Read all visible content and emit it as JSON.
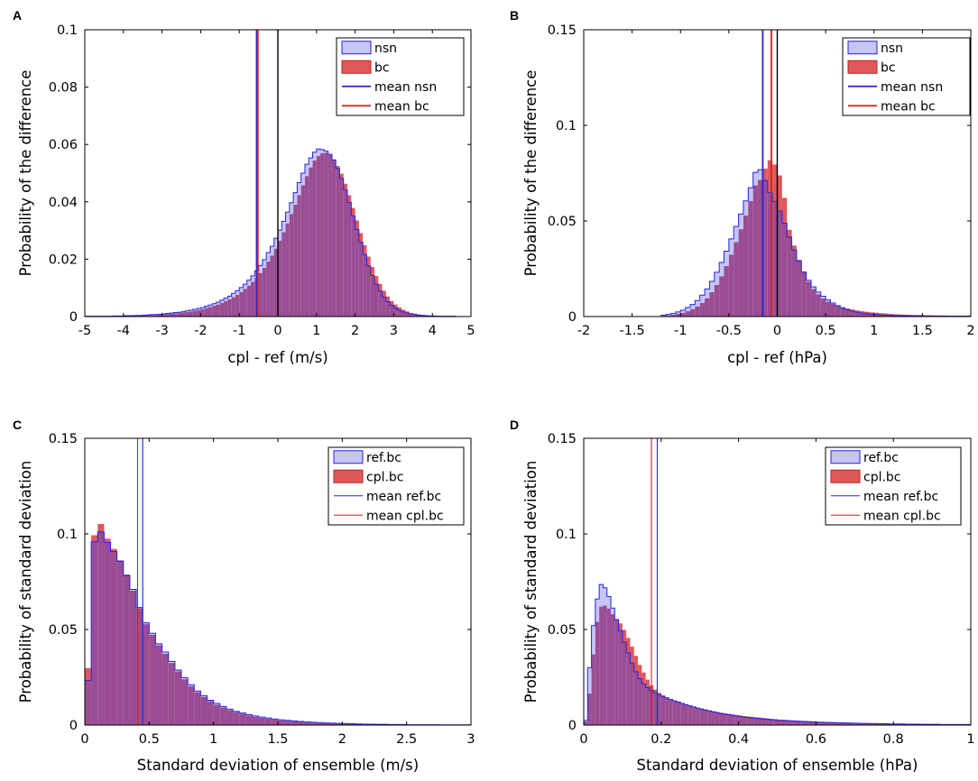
{
  "colors": {
    "nsn_fill": "#c6c6f5",
    "nsn_edge": "#2323e8",
    "bc_fill": "#e0585a",
    "bc_edge": "#c02020",
    "overlap": "#9a4d92",
    "mean_blue": "#2424d8",
    "mean_red": "#d42020",
    "zero_line": "#000000"
  },
  "chart_data": [
    {
      "type": "bar",
      "panel": "A",
      "xlabel": "cpl - ref (m/s)",
      "ylabel": "Probability of the difference",
      "xlim": [
        -5,
        5
      ],
      "ylim": [
        0,
        0.1
      ],
      "xticks": [
        -5,
        -4,
        -3,
        -2,
        -1,
        0,
        1,
        2,
        3,
        4,
        5
      ],
      "xtick_labels": [
        "-5",
        "-4",
        "-3",
        "-2",
        "-1",
        "0",
        "1",
        "2",
        "3",
        "4",
        "5"
      ],
      "yticks": [
        0,
        0.02,
        0.04,
        0.06,
        0.08,
        0.1
      ],
      "ytick_labels": [
        "0",
        "0.02",
        "0.04",
        "0.06",
        "0.08",
        "0.1"
      ],
      "legend": [
        "nsn",
        "bc",
        "mean nsn",
        "mean bc"
      ],
      "legend_position": "top-right",
      "bins": {
        "start": -5,
        "width": 0.1,
        "count": 100
      },
      "series": [
        {
          "name": "nsn",
          "kind": "hist",
          "values": [
            0.0001,
            0.0001,
            0.0001,
            0.0001,
            0.0001,
            0.0001,
            0.0001,
            0.0002,
            0.0002,
            0.0002,
            0.0003,
            0.0003,
            0.0003,
            0.0004,
            0.0004,
            0.0005,
            0.0006,
            0.0007,
            0.0007,
            0.0008,
            0.0009,
            0.0011,
            0.0012,
            0.0014,
            0.0015,
            0.0017,
            0.002,
            0.0022,
            0.0025,
            0.0028,
            0.0031,
            0.0036,
            0.004,
            0.0045,
            0.005,
            0.0057,
            0.0064,
            0.0071,
            0.0081,
            0.009,
            0.0101,
            0.0113,
            0.0127,
            0.0142,
            0.0159,
            0.0178,
            0.0198,
            0.0223,
            0.0245,
            0.0273,
            0.0301,
            0.0332,
            0.0364,
            0.0397,
            0.0432,
            0.0467,
            0.05,
            0.0531,
            0.0553,
            0.0573,
            0.0584,
            0.0582,
            0.0577,
            0.0566,
            0.0546,
            0.0516,
            0.0481,
            0.0441,
            0.0398,
            0.0351,
            0.0304,
            0.0259,
            0.0216,
            0.0177,
            0.0143,
            0.0113,
            0.0089,
            0.0068,
            0.0052,
            0.0039,
            0.003,
            0.0022,
            0.0016,
            0.0012,
            0.0009,
            0.0007,
            0.0005,
            0.0004,
            0.0003,
            0.0002,
            0.0002,
            0.0001,
            0.0001,
            0.0001,
            0.0001,
            0.0001,
            0,
            0,
            0,
            0
          ]
        },
        {
          "name": "bc",
          "kind": "hist",
          "values": [
            0.0001,
            0.0001,
            0.0001,
            0.0001,
            0.0001,
            0.0001,
            0.0001,
            0.0001,
            0.0002,
            0.0002,
            0.0002,
            0.0002,
            0.0003,
            0.0003,
            0.0004,
            0.0004,
            0.0005,
            0.0005,
            0.0006,
            0.0007,
            0.0008,
            0.0009,
            0.001,
            0.0011,
            0.0013,
            0.0014,
            0.0016,
            0.0018,
            0.0021,
            0.0023,
            0.0026,
            0.003,
            0.0033,
            0.0038,
            0.0042,
            0.0048,
            0.0054,
            0.006,
            0.0068,
            0.0076,
            0.0086,
            0.0097,
            0.0108,
            0.0121,
            0.0136,
            0.0152,
            0.017,
            0.0192,
            0.0213,
            0.0237,
            0.0265,
            0.0294,
            0.0325,
            0.0358,
            0.039,
            0.0424,
            0.0458,
            0.049,
            0.052,
            0.0544,
            0.056,
            0.057,
            0.0572,
            0.0564,
            0.0548,
            0.0525,
            0.0498,
            0.0463,
            0.0423,
            0.0379,
            0.0335,
            0.0291,
            0.0249,
            0.0209,
            0.0173,
            0.0141,
            0.0114,
            0.009,
            0.007,
            0.0054,
            0.0042,
            0.0032,
            0.0024,
            0.0018,
            0.0013,
            0.001,
            0.0007,
            0.0005,
            0.0004,
            0.0003,
            0.0002,
            0.0002,
            0.0001,
            0.0001,
            0.0001,
            0.0001,
            0,
            0,
            0,
            0
          ]
        },
        {
          "name": "mean nsn",
          "kind": "vline",
          "x": -0.55
        },
        {
          "name": "mean bc",
          "kind": "vline",
          "x": -0.52
        },
        {
          "name": "zero",
          "kind": "vline",
          "x": 0
        }
      ]
    },
    {
      "type": "bar",
      "panel": "B",
      "xlabel": "cpl - ref (hPa)",
      "ylabel": "Probability of the difference",
      "xlim": [
        -2,
        2
      ],
      "ylim": [
        0,
        0.15
      ],
      "xticks": [
        -2,
        -1.5,
        -1,
        -0.5,
        0,
        0.5,
        1,
        1.5,
        2
      ],
      "xtick_labels": [
        "-2",
        "-1.5",
        "-1",
        "-0.5",
        "0",
        "0.5",
        "1",
        "1.5",
        "2"
      ],
      "yticks": [
        0,
        0.05,
        0.1,
        0.15
      ],
      "ytick_labels": [
        "0",
        "0.05",
        "0.1",
        "0.15"
      ],
      "legend": [
        "nsn",
        "bc",
        "mean nsn",
        "mean bc"
      ],
      "legend_position": "top-right",
      "bins": {
        "start": -2,
        "width": 0.05,
        "count": 80
      },
      "series": [
        {
          "name": "nsn",
          "kind": "hist",
          "values": [
            0,
            0,
            0,
            0,
            0,
            0,
            0,
            0,
            0,
            0,
            0,
            0,
            0,
            0,
            0,
            0,
            0.0007,
            0.0011,
            0.0016,
            0.0024,
            0.0033,
            0.0047,
            0.0063,
            0.0084,
            0.0112,
            0.0144,
            0.0184,
            0.0232,
            0.0283,
            0.0342,
            0.0406,
            0.0471,
            0.0536,
            0.0605,
            0.0674,
            0.0754,
            0.0768,
            0.0711,
            0.0648,
            0.0602,
            0.0552,
            0.0488,
            0.0415,
            0.0348,
            0.029,
            0.0233,
            0.019,
            0.0155,
            0.0128,
            0.0106,
            0.0087,
            0.0071,
            0.0057,
            0.0046,
            0.0036,
            0.0029,
            0.0023,
            0.0018,
            0.0015,
            0.0012,
            0.001,
            0.0008,
            0.0007,
            0.0006,
            0.0005,
            0.0005,
            0.0004,
            0.0004,
            0.0003,
            0.0003,
            0.0003,
            0.0003,
            0.0002,
            0.0002,
            0.0002,
            0.0002,
            0.0002,
            0.0002,
            0.0002,
            0.0002
          ]
        },
        {
          "name": "bc",
          "kind": "hist",
          "values": [
            0,
            0,
            0,
            0,
            0,
            0,
            0,
            0,
            0,
            0,
            0,
            0,
            0,
            0,
            0,
            0,
            0.0004,
            0.0006,
            0.0009,
            0.0014,
            0.002,
            0.0028,
            0.0039,
            0.0053,
            0.0072,
            0.0096,
            0.0128,
            0.0166,
            0.0211,
            0.0264,
            0.0324,
            0.0389,
            0.0457,
            0.0529,
            0.0605,
            0.0686,
            0.0715,
            0.0774,
            0.0818,
            0.0795,
            0.0738,
            0.0621,
            0.0454,
            0.0371,
            0.0297,
            0.0232,
            0.0183,
            0.0145,
            0.0117,
            0.0095,
            0.0079,
            0.0066,
            0.0056,
            0.0048,
            0.0042,
            0.0037,
            0.0032,
            0.0028,
            0.0025,
            0.0022,
            0.002,
            0.0018,
            0.0016,
            0.0014,
            0.0012,
            0.0011,
            0.001,
            0.0009,
            0.0008,
            0.0008,
            0.0007,
            0.0007,
            0.0006,
            0.0006,
            0.0006,
            0.0005,
            0.0005,
            0.0005,
            0.0005,
            0.0005
          ]
        },
        {
          "name": "mean nsn",
          "kind": "vline",
          "x": -0.15
        },
        {
          "name": "mean bc",
          "kind": "vline",
          "x": -0.06
        },
        {
          "name": "zero",
          "kind": "vline",
          "x": 0
        }
      ]
    },
    {
      "type": "bar",
      "panel": "C",
      "xlabel": "Standard deviation of ensemble (m/s)",
      "ylabel": "Probability of standard deviation",
      "xlim": [
        0,
        3
      ],
      "ylim": [
        0,
        0.15
      ],
      "xticks": [
        0,
        0.5,
        1,
        1.5,
        2,
        2.5,
        3
      ],
      "xtick_labels": [
        "0",
        "0.5",
        "1",
        "1.5",
        "2",
        "2.5",
        "3"
      ],
      "yticks": [
        0,
        0.05,
        0.1,
        0.15
      ],
      "ytick_labels": [
        "0",
        "0.05",
        "0.1",
        "0.15"
      ],
      "legend": [
        "ref.bc",
        "cpl.bc",
        "mean ref.bc",
        "mean cpl.bc"
      ],
      "legend_position": "top-right",
      "bins": {
        "start": 0,
        "width": 0.05,
        "count": 60
      },
      "series": [
        {
          "name": "ref.bc",
          "kind": "hist",
          "values": [
            0.0233,
            0.0959,
            0.101,
            0.0955,
            0.0908,
            0.0857,
            0.0782,
            0.071,
            0.0615,
            0.0535,
            0.048,
            0.0425,
            0.0382,
            0.0333,
            0.0288,
            0.0248,
            0.0211,
            0.0178,
            0.0154,
            0.013,
            0.0113,
            0.0097,
            0.0083,
            0.0072,
            0.0063,
            0.0055,
            0.0048,
            0.0042,
            0.0037,
            0.0032,
            0.0028,
            0.0025,
            0.0022,
            0.0019,
            0.0017,
            0.0015,
            0.0013,
            0.0011,
            0.001,
            0.0009,
            0.0008,
            0.0007,
            0.0006,
            0.0005,
            0.0005,
            0.0004,
            0.0004,
            0.0003,
            0.0003,
            0.0003,
            0.0002,
            0.0002,
            0.0002,
            0.0002,
            0.0002,
            0.0001,
            0.0001,
            0.0001,
            0.0001,
            0.0001
          ]
        },
        {
          "name": "cpl.bc",
          "kind": "hist",
          "values": [
            0.0298,
            0.0993,
            0.1052,
            0.0975,
            0.0922,
            0.0862,
            0.0788,
            0.0704,
            0.0611,
            0.0528,
            0.0472,
            0.0418,
            0.0373,
            0.0325,
            0.0281,
            0.024,
            0.0204,
            0.0172,
            0.0148,
            0.0125,
            0.0107,
            0.0092,
            0.0079,
            0.0068,
            0.0059,
            0.0051,
            0.0044,
            0.0038,
            0.0033,
            0.0029,
            0.0025,
            0.0022,
            0.0019,
            0.0017,
            0.0015,
            0.0013,
            0.0011,
            0.001,
            0.0009,
            0.0008,
            0.0007,
            0.0006,
            0.0005,
            0.0004,
            0.0004,
            0.0003,
            0.0003,
            0.0003,
            0.0002,
            0.0002,
            0.0002,
            0.0002,
            0.0001,
            0.0001,
            0.0001,
            0.0001,
            0.0001,
            0.0001,
            0.0001,
            0.0001
          ]
        },
        {
          "name": "mean ref.bc",
          "kind": "vline",
          "x": 0.45
        },
        {
          "name": "mean cpl.bc",
          "kind": "vline",
          "x": 0.41
        }
      ]
    },
    {
      "type": "bar",
      "panel": "D",
      "xlabel": "Standard deviation of ensemble (hPa)",
      "ylabel": "Probability of standard deviation",
      "xlim": [
        0,
        1
      ],
      "ylim": [
        0,
        0.15
      ],
      "xticks": [
        0,
        0.2,
        0.4,
        0.6,
        0.8,
        1
      ],
      "xtick_labels": [
        "0",
        "0.2",
        "0.4",
        "0.6",
        "0.8",
        "1"
      ],
      "yticks": [
        0,
        0.05,
        0.1,
        0.15
      ],
      "ytick_labels": [
        "0",
        "0.05",
        "0.1",
        "0.15"
      ],
      "legend": [
        "ref.bc",
        "cpl.bc",
        "mean ref.bc",
        "mean cpl.bc"
      ],
      "legend_position": "top-right",
      "bins": {
        "start": 0,
        "width": 0.01,
        "count": 100
      },
      "series": [
        {
          "name": "ref.bc",
          "kind": "hist",
          "values": [
            0.0025,
            0.03,
            0.052,
            0.066,
            0.0735,
            0.0718,
            0.0672,
            0.0612,
            0.0552,
            0.0494,
            0.0434,
            0.0378,
            0.0324,
            0.0279,
            0.0243,
            0.0215,
            0.0196,
            0.0181,
            0.0169,
            0.0159,
            0.015,
            0.0142,
            0.0134,
            0.0127,
            0.012,
            0.0113,
            0.0107,
            0.0101,
            0.0095,
            0.0089,
            0.0084,
            0.0079,
            0.0074,
            0.0069,
            0.0065,
            0.0061,
            0.0057,
            0.0054,
            0.0051,
            0.0048,
            0.0045,
            0.0042,
            0.004,
            0.0038,
            0.0036,
            0.0034,
            0.0032,
            0.003,
            0.0028,
            0.0027,
            0.0025,
            0.0024,
            0.0023,
            0.0022,
            0.0021,
            0.002,
            0.0019,
            0.0018,
            0.0017,
            0.0016,
            0.0015,
            0.0015,
            0.0014,
            0.0013,
            0.0013,
            0.0012,
            0.0012,
            0.0011,
            0.0011,
            0.001,
            0.001,
            0.0009,
            0.0009,
            0.0008,
            0.0008,
            0.0008,
            0.0007,
            0.0007,
            0.0007,
            0.0006,
            0.0006,
            0.0006,
            0.0006,
            0.0005,
            0.0005,
            0.0005,
            0.0005,
            0.0004,
            0.0004,
            0.0004,
            0.0004,
            0.0004,
            0.0003,
            0.0003,
            0.0003,
            0.0003,
            0.0003,
            0.0003,
            0.0003,
            0.0003
          ]
        },
        {
          "name": "cpl.bc",
          "kind": "hist",
          "values": [
            0.002,
            0.0165,
            0.037,
            0.054,
            0.062,
            0.0626,
            0.061,
            0.058,
            0.0555,
            0.0532,
            0.0498,
            0.0456,
            0.041,
            0.0362,
            0.0315,
            0.0275,
            0.0238,
            0.0208,
            0.0186,
            0.0169,
            0.0156,
            0.0145,
            0.0135,
            0.0127,
            0.0119,
            0.0112,
            0.0106,
            0.0101,
            0.0095,
            0.009,
            0.0086,
            0.0081,
            0.0077,
            0.0073,
            0.0069,
            0.0065,
            0.0062,
            0.0059,
            0.0056,
            0.0053,
            0.005,
            0.0047,
            0.0045,
            0.0043,
            0.0041,
            0.0039,
            0.0037,
            0.0035,
            0.0033,
            0.0031,
            0.0029,
            0.0028,
            0.0027,
            0.0025,
            0.0024,
            0.0023,
            0.0022,
            0.0021,
            0.002,
            0.0019,
            0.0018,
            0.0017,
            0.0016,
            0.0016,
            0.0015,
            0.0014,
            0.0014,
            0.0013,
            0.0012,
            0.0012,
            0.0011,
            0.0011,
            0.001,
            0.001,
            0.0009,
            0.0009,
            0.0009,
            0.0008,
            0.0008,
            0.0007,
            0.0007,
            0.0007,
            0.0006,
            0.0006,
            0.0006,
            0.0006,
            0.0005,
            0.0005,
            0.0005,
            0.0005,
            0.0004,
            0.0004,
            0.0004,
            0.0004,
            0.0004,
            0.0003,
            0.0003,
            0.0003,
            0.0003,
            0.0003
          ]
        },
        {
          "name": "mean ref.bc",
          "kind": "vline",
          "x": 0.19
        },
        {
          "name": "mean cpl.bc",
          "kind": "vline",
          "x": 0.175
        }
      ]
    }
  ]
}
